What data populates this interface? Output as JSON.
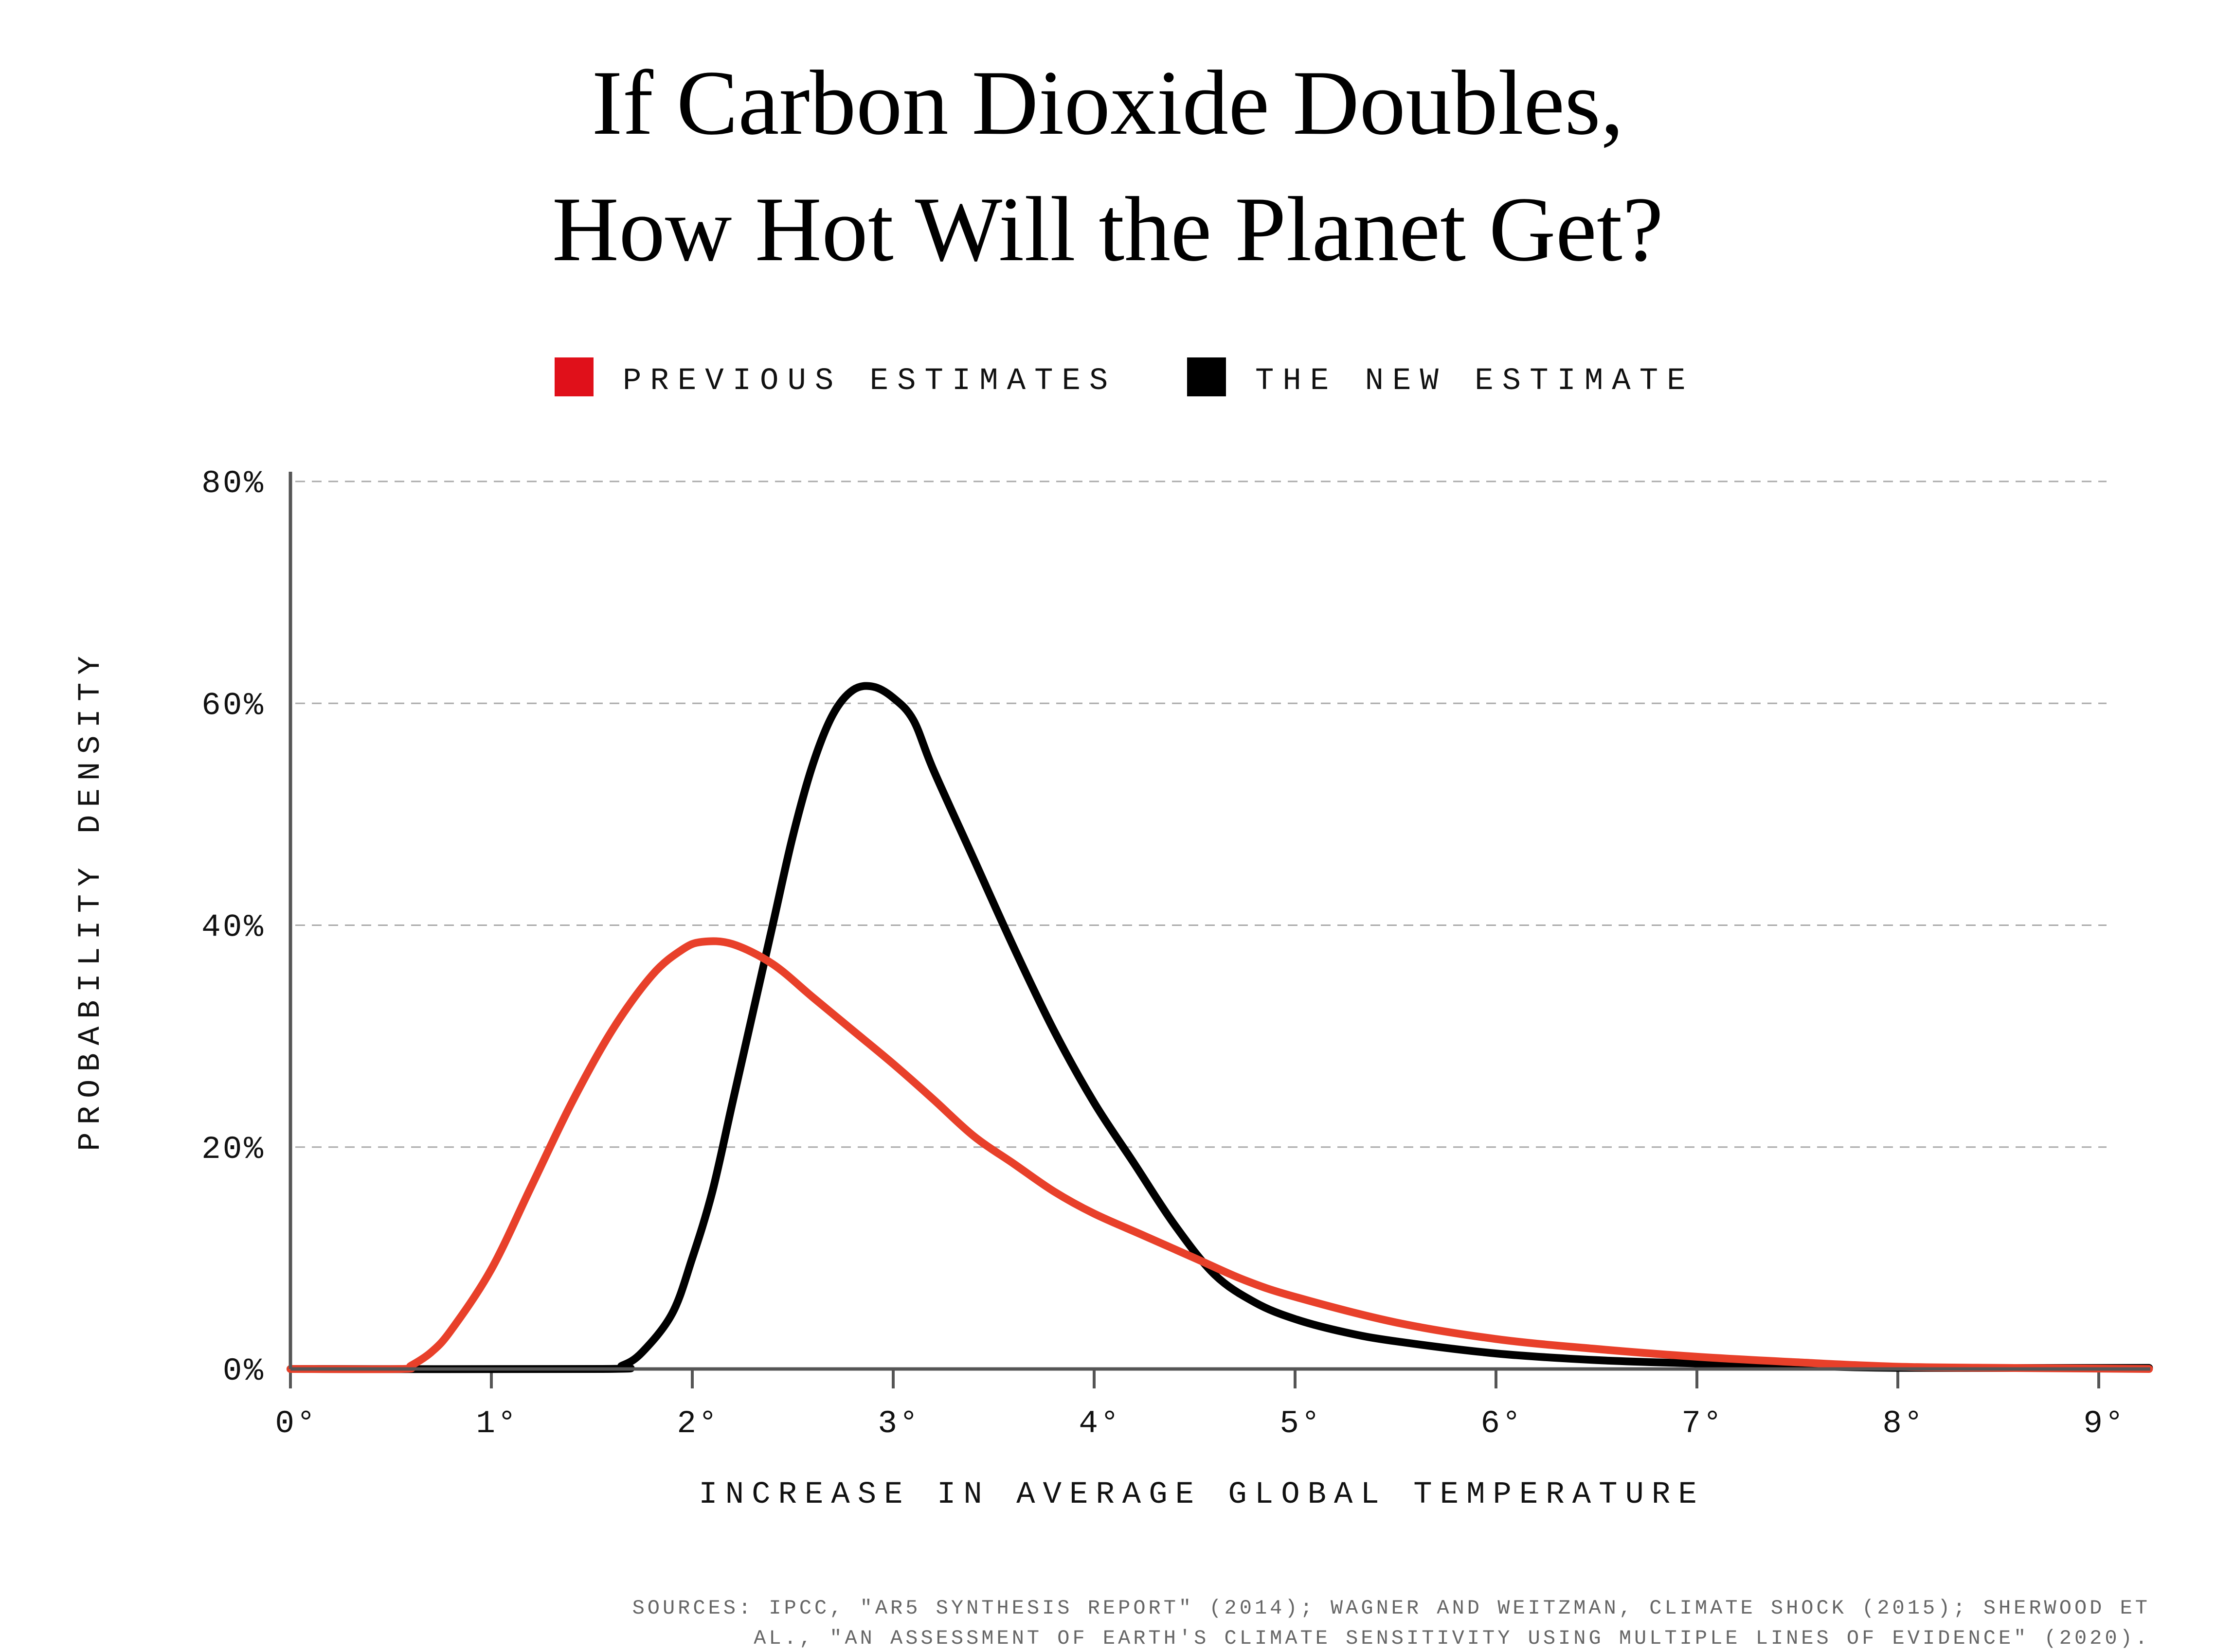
{
  "chart_data": {
    "type": "line",
    "title": [
      "If Carbon Dioxide Doubles,",
      "How Hot Will the Planet Get?"
    ],
    "xlabel": "INCREASE IN AVERAGE GLOBAL TEMPERATURE",
    "ylabel": "PROBABILITY DENSITY",
    "xlim": [
      0,
      9.25
    ],
    "ylim": [
      0,
      80
    ],
    "x_ticks": [
      0,
      1,
      2,
      3,
      4,
      5,
      6,
      7,
      8,
      9
    ],
    "x_tick_labels": [
      "0°",
      "1°",
      "2°",
      "3°",
      "4°",
      "5°",
      "6°",
      "7°",
      "8°",
      "9°"
    ],
    "y_ticks": [
      0,
      20,
      40,
      60,
      80
    ],
    "y_tick_labels": [
      "0%",
      "20%",
      "40%",
      "60%",
      "80%"
    ],
    "grid": "horizontal dashed",
    "legend_position": "top",
    "series": [
      {
        "name": "PREVIOUS ESTIMATES",
        "color": "#e8402a",
        "points": [
          [
            0,
            0
          ],
          [
            0.55,
            0
          ],
          [
            0.6,
            0.3
          ],
          [
            0.7,
            1.5
          ],
          [
            0.8,
            3.5
          ],
          [
            1.0,
            9
          ],
          [
            1.2,
            16.5
          ],
          [
            1.4,
            24
          ],
          [
            1.6,
            30.5
          ],
          [
            1.8,
            35.5
          ],
          [
            1.95,
            37.8
          ],
          [
            2.05,
            38.5
          ],
          [
            2.2,
            38.3
          ],
          [
            2.4,
            36.5
          ],
          [
            2.6,
            33.5
          ],
          [
            2.8,
            30.5
          ],
          [
            3.0,
            27.5
          ],
          [
            3.2,
            24.3
          ],
          [
            3.4,
            21
          ],
          [
            3.6,
            18.5
          ],
          [
            3.8,
            16
          ],
          [
            4.0,
            14
          ],
          [
            4.25,
            12
          ],
          [
            4.5,
            10
          ],
          [
            4.75,
            8
          ],
          [
            5.0,
            6.5
          ],
          [
            5.5,
            4.2
          ],
          [
            6.0,
            2.7
          ],
          [
            6.5,
            1.8
          ],
          [
            7.0,
            1.1
          ],
          [
            7.5,
            0.6
          ],
          [
            8.0,
            0.2
          ],
          [
            8.5,
            0.1
          ],
          [
            9.25,
            0
          ]
        ]
      },
      {
        "name": "THE NEW ESTIMATE",
        "color": "#000000",
        "points": [
          [
            0,
            0
          ],
          [
            1.55,
            0
          ],
          [
            1.65,
            0.3
          ],
          [
            1.75,
            1.5
          ],
          [
            1.9,
            5
          ],
          [
            2.0,
            10
          ],
          [
            2.1,
            16
          ],
          [
            2.2,
            24
          ],
          [
            2.3,
            32
          ],
          [
            2.4,
            40
          ],
          [
            2.5,
            48
          ],
          [
            2.6,
            54.5
          ],
          [
            2.7,
            59
          ],
          [
            2.8,
            61.2
          ],
          [
            2.9,
            61.5
          ],
          [
            3.0,
            60.5
          ],
          [
            3.1,
            58.5
          ],
          [
            3.2,
            54
          ],
          [
            3.4,
            46
          ],
          [
            3.6,
            38
          ],
          [
            3.8,
            30.5
          ],
          [
            4.0,
            24
          ],
          [
            4.2,
            18.5
          ],
          [
            4.4,
            13
          ],
          [
            4.6,
            8.5
          ],
          [
            4.8,
            6
          ],
          [
            5.0,
            4.5
          ],
          [
            5.25,
            3.3
          ],
          [
            5.5,
            2.5
          ],
          [
            6.0,
            1.4
          ],
          [
            6.5,
            0.8
          ],
          [
            7.0,
            0.5
          ],
          [
            7.5,
            0.3
          ],
          [
            8.0,
            0.1
          ],
          [
            9.25,
            0.1
          ]
        ]
      }
    ],
    "source": [
      "SOURCES:  IPCC, \"AR5 SYNTHESIS REPORT\" (2014); WAGNER AND WEITZMAN, CLIMATE SHOCK (2015); SHERWOOD ET",
      "AL., \"AN ASSESSMENT OF EARTH'S CLIMATE SENSITIVITY USING MULTIPLE LINES OF EVIDENCE\" (2020)."
    ]
  }
}
